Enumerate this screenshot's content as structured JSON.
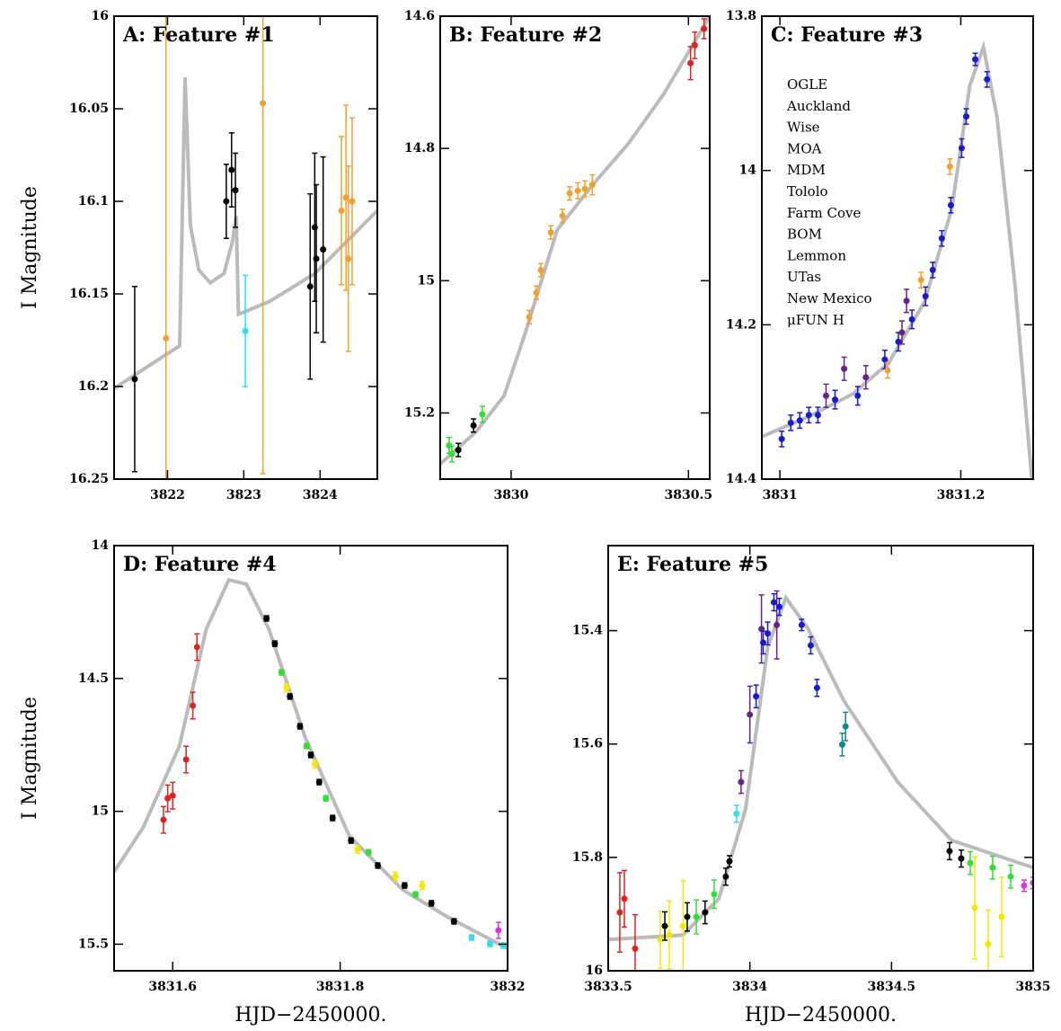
{
  "chart_data": [
    {
      "type": "scatter",
      "title": "A: Feature #1",
      "ylabel": "I Magnitude",
      "xlim": [
        3821.3,
        3824.75
      ],
      "ylim": [
        16.25,
        16
      ],
      "xticks": [
        3822,
        3823,
        3824
      ],
      "yticks": [
        16,
        16.05,
        16.1,
        16.15,
        16.2,
        16.25
      ],
      "model": {
        "color": "#bbbbbb",
        "x": [
          3821.3,
          3822.16,
          3822.23,
          3822.3,
          3822.41,
          3822.56,
          3822.74,
          3822.85,
          3822.9,
          3822.93,
          3823.34,
          3823.93,
          3824.75
        ],
        "y": [
          16.201,
          16.178,
          16.033,
          16.113,
          16.137,
          16.144,
          16.139,
          16.122,
          16.108,
          16.161,
          16.154,
          16.139,
          16.105
        ]
      },
      "series": [
        {
          "color": "#000000",
          "x": [
            3821.57,
            3822.77,
            3822.84,
            3822.89,
            3823.87,
            3823.93,
            3823.95,
            3824.04
          ],
          "y": [
            16.196,
            16.1,
            16.083,
            16.094,
            16.146,
            16.114,
            16.131,
            16.126
          ],
          "yerr": [
            0.05,
            0.02,
            0.02,
            0.02,
            0.05,
            0.04,
            0.04,
            0.05
          ]
        },
        {
          "color": "#f0a030",
          "x": [
            3821.98,
            3823.25,
            3824.28,
            3824.34,
            3824.37,
            3824.42
          ],
          "y": [
            16.174,
            16.047,
            16.105,
            16.098,
            16.131,
            16.1
          ],
          "yerr": [
            0.2,
            0.2,
            0.04,
            0.05,
            0.05,
            0.045
          ]
        },
        {
          "color": "#33ddee",
          "x": [
            3823.02
          ],
          "y": [
            16.17
          ],
          "yerr": [
            0.03
          ]
        }
      ]
    },
    {
      "type": "scatter",
      "title": "B: Feature #2",
      "xlim": [
        3829.8,
        3830.56
      ],
      "ylim": [
        15.3,
        14.6
      ],
      "xticks": [
        3830,
        3830.5
      ],
      "yticks": [
        14.6,
        14.8,
        15,
        15.2
      ],
      "model": {
        "color": "#bbbbbb",
        "x": [
          3829.8,
          3829.9,
          3829.98,
          3830.04,
          3830.13,
          3830.23,
          3830.33,
          3830.43,
          3830.56
        ],
        "y": [
          15.277,
          15.229,
          15.174,
          15.079,
          14.923,
          14.855,
          14.793,
          14.718,
          14.6
        ]
      },
      "series": [
        {
          "color": "#000000",
          "x": [
            3829.851,
            3829.894
          ],
          "y": [
            15.256,
            15.219
          ],
          "yerr": [
            0.01,
            0.01
          ]
        },
        {
          "color": "#33dd33",
          "x": [
            3829.825,
            3829.833,
            3829.919
          ],
          "y": [
            15.249,
            15.262,
            15.202
          ],
          "yerr": [
            0.012,
            0.012,
            0.012
          ]
        },
        {
          "color": "#f0a030",
          "x": [
            3830.051,
            3830.071,
            3830.084,
            3830.112,
            3830.145,
            3830.165,
            3830.188,
            3830.208,
            3830.229
          ],
          "y": [
            15.055,
            15.018,
            14.984,
            14.927,
            14.902,
            14.868,
            14.864,
            14.861,
            14.855
          ],
          "yerr": [
            0.01,
            0.01,
            0.01,
            0.01,
            0.01,
            0.01,
            0.012,
            0.012,
            0.015
          ]
        },
        {
          "color": "#dd2222",
          "x": [
            3830.506,
            3830.518,
            3830.544
          ],
          "y": [
            14.671,
            14.644,
            14.619
          ],
          "yerr": [
            0.025,
            0.02,
            0.015
          ]
        }
      ]
    },
    {
      "type": "scatter",
      "title": "C: Feature #3",
      "xlim": [
        3830.98,
        3831.28
      ],
      "ylim": [
        14.4,
        13.8
      ],
      "xticks": [
        3831,
        3831.2
      ],
      "yticks": [
        13.8,
        14,
        14.2,
        14.4
      ],
      "model": {
        "color": "#bbbbbb",
        "x": [
          3830.98,
          3831.03,
          3831.08,
          3831.12,
          3831.16,
          3831.19,
          3831.21,
          3831.225,
          3831.24,
          3831.26,
          3831.28
        ],
        "y": [
          14.345,
          14.32,
          14.29,
          14.25,
          14.17,
          14.05,
          13.89,
          13.84,
          13.93,
          14.15,
          14.42
        ]
      },
      "series": [
        {
          "name": "OGLE",
          "color": "#000000",
          "x": [],
          "y": [],
          "yerr": []
        },
        {
          "name": "Auckland",
          "color": "#1a1acc",
          "x": [
            3831.002,
            3831.012,
            3831.022,
            3831.032,
            3831.042,
            3831.061,
            3831.086,
            3831.116,
            3831.131,
            3831.146,
            3831.161,
            3831.169,
            3831.179,
            3831.189,
            3831.201,
            3831.206,
            3831.216,
            3831.229
          ],
          "y": [
            14.348,
            14.327,
            14.324,
            14.317,
            14.317,
            14.297,
            14.292,
            14.245,
            14.222,
            14.193,
            14.163,
            14.129,
            14.088,
            14.045,
            13.971,
            13.93,
            13.856,
            13.882
          ],
          "yerr": [
            0.01,
            0.01,
            0.01,
            0.01,
            0.01,
            0.012,
            0.012,
            0.012,
            0.012,
            0.012,
            0.012,
            0.01,
            0.01,
            0.01,
            0.012,
            0.01,
            0.008,
            0.01
          ]
        },
        {
          "name": "Wise",
          "color": "#dd2222",
          "x": [],
          "y": [],
          "yerr": []
        },
        {
          "name": "MOA",
          "color": "#f0a030",
          "x": [
            3831.119,
            3831.156,
            3831.188
          ],
          "y": [
            14.259,
            14.142,
            13.995
          ],
          "yerr": [
            0.01,
            0.01,
            0.01
          ]
        },
        {
          "name": "MDM",
          "color": "#33ddee",
          "x": [],
          "y": [],
          "yerr": []
        },
        {
          "name": "Tololo",
          "color": "#33dd33",
          "x": [],
          "y": [],
          "yerr": []
        },
        {
          "name": "Farm Cove",
          "color": "#662288",
          "x": [
            3831.051,
            3831.071,
            3831.095,
            3831.135,
            3831.14
          ],
          "y": [
            14.292,
            14.257,
            14.268,
            14.21,
            14.169
          ],
          "yerr": [
            0.015,
            0.015,
            0.015,
            0.015,
            0.015
          ]
        },
        {
          "name": "BOM",
          "color": "#f5b840",
          "x": [],
          "y": [],
          "yerr": []
        },
        {
          "name": "Lemmon",
          "color": "#dd33dd",
          "x": [],
          "y": [],
          "yerr": []
        },
        {
          "name": "UTas",
          "color": "#118888",
          "x": [],
          "y": [],
          "yerr": []
        },
        {
          "name": "New Mexico",
          "color": "#116611",
          "x": [],
          "y": [],
          "yerr": []
        },
        {
          "name": "μFUN H",
          "color": "#f5e800",
          "x": [],
          "y": [],
          "yerr": []
        }
      ]
    },
    {
      "type": "scatter",
      "title": "D: Feature #4",
      "ylabel": "I Magnitude",
      "xlabel": "HJD−2450000.",
      "xlim": [
        3831.53,
        3832
      ],
      "ylim": [
        15.6,
        14
      ],
      "xticks": [
        3831.6,
        3831.8,
        3832
      ],
      "yticks": [
        14,
        14.5,
        15,
        15.5
      ],
      "model": {
        "color": "#bbbbbb",
        "x": [
          3831.53,
          3831.565,
          3831.608,
          3831.64,
          3831.667,
          3831.688,
          3831.715,
          3831.758,
          3831.811,
          3831.875,
          3831.928,
          3832
        ],
        "y": [
          15.228,
          15.059,
          14.754,
          14.315,
          14.129,
          14.145,
          14.315,
          14.72,
          15.093,
          15.296,
          15.397,
          15.516
        ]
      },
      "series": [
        {
          "color": "#dd2222",
          "x": [
            3831.589,
            3831.594,
            3831.6,
            3831.616,
            3831.624,
            3831.629
          ],
          "y": [
            15.032,
            14.951,
            14.941,
            14.805,
            14.602,
            14.382
          ],
          "yerr": [
            0.05,
            0.05,
            0.05,
            0.05,
            0.05,
            0.05
          ]
        },
        {
          "color": "#000000",
          "x": [
            3831.712,
            3831.722,
            3831.74,
            3831.752,
            3831.765,
            3831.775,
            3831.791,
            3831.813,
            3831.845,
            3831.877,
            3831.909,
            3831.936
          ],
          "y": [
            14.274,
            14.369,
            14.568,
            14.68,
            14.788,
            14.89,
            15.025,
            15.11,
            15.204,
            15.279,
            15.346,
            15.414
          ],
          "yerr": [
            0.01,
            0.01,
            0.01,
            0.01,
            0.01,
            0.01,
            0.01,
            0.01,
            0.01,
            0.01,
            0.01,
            0.01
          ]
        },
        {
          "color": "#33dd33",
          "x": [
            3831.73,
            3831.76,
            3831.783,
            3831.834,
            3831.89
          ],
          "y": [
            14.477,
            14.754,
            14.951,
            15.154,
            15.313
          ],
          "yerr": [
            0.01,
            0.01,
            0.01,
            0.01,
            0.01
          ]
        },
        {
          "color": "#f5e800",
          "x": [
            3831.736,
            3831.77,
            3831.821,
            3831.866,
            3831.898
          ],
          "y": [
            14.535,
            14.822,
            15.143,
            15.245,
            15.279
          ],
          "yerr": [
            0.015,
            0.015,
            0.015,
            0.015,
            0.015
          ]
        },
        {
          "color": "#33ddee",
          "x": [
            3831.957,
            3831.979,
            3831.995
          ],
          "y": [
            15.475,
            15.499,
            15.505
          ],
          "yerr": [
            0.01,
            0.01,
            0.01
          ]
        },
        {
          "color": "#dd33dd",
          "x": [
            3831.989
          ],
          "y": [
            15.448
          ],
          "yerr": [
            0.03
          ]
        }
      ]
    },
    {
      "type": "scatter",
      "title": "E: Feature #5",
      "xlabel": "HJD−2450000.",
      "xlim": [
        3833.5,
        3835
      ],
      "ylim": [
        16,
        15.25
      ],
      "xticks": [
        3833.5,
        3834,
        3834.5,
        3835
      ],
      "yticks": [
        15.4,
        15.6,
        15.8,
        16
      ],
      "model": {
        "color": "#bbbbbb",
        "x": [
          3833.5,
          3833.764,
          3833.89,
          3833.985,
          3834.063,
          3834.127,
          3834.206,
          3834.332,
          3834.522,
          3834.712,
          3835
        ],
        "y": [
          15.945,
          15.937,
          15.873,
          15.715,
          15.429,
          15.342,
          15.397,
          15.524,
          15.667,
          15.77,
          15.818
        ]
      },
      "series": [
        {
          "color": "#dd2222",
          "x": [
            3833.541,
            3833.557,
            3833.595
          ],
          "y": [
            15.897,
            15.873,
            15.961
          ],
          "yerr": [
            0.07,
            0.05,
            0.06
          ]
        },
        {
          "color": "#f5e800",
          "x": [
            3833.684,
            3833.716,
            3833.764,
            3834.794,
            3834.841,
            3834.889
          ],
          "y": [
            15.945,
            15.937,
            15.921,
            15.889,
            15.953,
            15.905
          ],
          "yerr": [
            0.05,
            0.06,
            0.08,
            0.09,
            0.06,
            0.07
          ]
        },
        {
          "color": "#000000",
          "x": [
            3833.7,
            3833.779,
            3833.842,
            3833.915,
            3833.928,
            3834.705,
            3834.746
          ],
          "y": [
            15.921,
            15.905,
            15.897,
            15.834,
            15.807,
            15.789,
            15.802
          ],
          "yerr": [
            0.025,
            0.025,
            0.02,
            0.015,
            0.01,
            0.015,
            0.015
          ]
        },
        {
          "color": "#33dd33",
          "x": [
            3833.811,
            3833.874,
            3834.778,
            3834.857,
            3834.921
          ],
          "y": [
            15.905,
            15.865,
            15.81,
            15.818,
            15.834
          ],
          "yerr": [
            0.03,
            0.025,
            0.02,
            0.02,
            0.02
          ]
        },
        {
          "color": "#33ddee",
          "x": [
            3833.953
          ],
          "y": [
            15.723
          ],
          "yerr": [
            0.015
          ]
        },
        {
          "color": "#662288",
          "x": [
            3833.969,
            3834.0,
            3834.041,
            3834.095
          ],
          "y": [
            15.667,
            15.548,
            15.397,
            15.39
          ],
          "yerr": [
            0.02,
            0.05,
            0.06,
            0.06
          ]
        },
        {
          "color": "#1a1acc",
          "x": [
            3834.022,
            3834.047,
            3834.063,
            3834.085,
            3834.104,
            3834.183,
            3834.215,
            3834.237
          ],
          "y": [
            15.516,
            15.421,
            15.405,
            15.35,
            15.358,
            15.39,
            15.426,
            15.501
          ],
          "yerr": [
            0.02,
            0.02,
            0.02,
            0.015,
            0.015,
            0.01,
            0.015,
            0.015
          ]
        },
        {
          "color": "#118888",
          "x": [
            3834.326,
            3834.338
          ],
          "y": [
            15.601,
            15.569
          ],
          "yerr": [
            0.02,
            0.025
          ]
        },
        {
          "color": "#dd33dd",
          "x": [
            3834.968,
            3835
          ],
          "y": [
            15.85,
            15.845
          ],
          "yerr": [
            0.01,
            0.01
          ]
        }
      ]
    }
  ]
}
